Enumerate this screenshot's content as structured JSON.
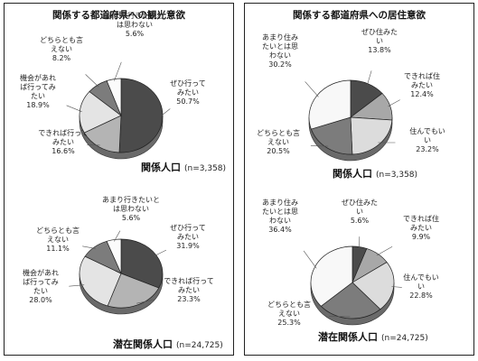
{
  "panels": [
    {
      "title": "関係する都道府県への観光意欲"
    },
    {
      "title": "関係する都道府県への居住意欲"
    }
  ],
  "chart_data": [
    {
      "type": "pie",
      "panel": 0,
      "group_name": "関係人口",
      "group_n": "(n=3,358)",
      "slices": [
        {
          "label": [
            "ぜひ行って",
            "みたい"
          ],
          "pct": "50.7%",
          "value": 50.7,
          "color": "#4b4b4b"
        },
        {
          "label": [
            "できれば行って",
            "みたい"
          ],
          "pct": "16.6%",
          "value": 16.6,
          "color": "#b4b4b4"
        },
        {
          "label": [
            "機会があれ",
            "ば行ってみ",
            "たい"
          ],
          "pct": "18.9%",
          "value": 18.9,
          "color": "#e4e4e4"
        },
        {
          "label": [
            "どちらとも言",
            "えない"
          ],
          "pct": "8.2%",
          "value": 8.2,
          "color": "#7c7c7c"
        },
        {
          "label": [
            "あまり行きたいと",
            "は思わない"
          ],
          "pct": "5.6%",
          "value": 5.6,
          "color": "#fbfbfb"
        }
      ]
    },
    {
      "type": "pie",
      "panel": 0,
      "group_name": "潜在関係人口",
      "group_n": "(n=24,725)",
      "slices": [
        {
          "label": [
            "ぜひ行って",
            "みたい"
          ],
          "pct": "31.9%",
          "value": 31.9,
          "color": "#4b4b4b"
        },
        {
          "label": [
            "できれば行って",
            "みたい"
          ],
          "pct": "23.3%",
          "value": 23.3,
          "color": "#b4b4b4"
        },
        {
          "label": [
            "機会があれ",
            "ば行ってみ",
            "たい"
          ],
          "pct": "28.0%",
          "value": 28.0,
          "color": "#e4e4e4"
        },
        {
          "label": [
            "どちらとも言",
            "えない"
          ],
          "pct": "11.1%",
          "value": 11.1,
          "color": "#7c7c7c"
        },
        {
          "label": [
            "あまり行きたいと",
            "は思わない"
          ],
          "pct": "5.6%",
          "value": 5.6,
          "color": "#fbfbfb"
        }
      ]
    },
    {
      "type": "pie",
      "panel": 1,
      "group_name": "関係人口",
      "group_n": "(n=3,358)",
      "slices": [
        {
          "label": [
            "ぜひ住みた",
            "い"
          ],
          "pct": "13.8%",
          "value": 13.8,
          "color": "#4b4b4b"
        },
        {
          "label": [
            "できれば住",
            "みたい"
          ],
          "pct": "12.4%",
          "value": 12.4,
          "color": "#a8a8a8"
        },
        {
          "label": [
            "住んでもい",
            "い"
          ],
          "pct": "23.2%",
          "value": 23.2,
          "color": "#dcdcdc"
        },
        {
          "label": [
            "どちらとも言",
            "えない"
          ],
          "pct": "20.5%",
          "value": 20.5,
          "color": "#7c7c7c"
        },
        {
          "label": [
            "あまり住み",
            "たいとは思",
            "わない"
          ],
          "pct": "30.2%",
          "value": 30.2,
          "color": "#f8f8f8"
        }
      ]
    },
    {
      "type": "pie",
      "panel": 1,
      "group_name": "潜在関係人口",
      "group_n": "(n=24,725)",
      "slices": [
        {
          "label": [
            "ぜひ住みた",
            "い"
          ],
          "pct": "5.6%",
          "value": 5.6,
          "color": "#4b4b4b"
        },
        {
          "label": [
            "できれば住",
            "みたい"
          ],
          "pct": "9.9%",
          "value": 9.9,
          "color": "#a8a8a8"
        },
        {
          "label": [
            "住んでもい",
            "い"
          ],
          "pct": "22.8%",
          "value": 22.8,
          "color": "#dcdcdc"
        },
        {
          "label": [
            "どちらとも言",
            "えない"
          ],
          "pct": "25.3%",
          "value": 25.3,
          "color": "#7c7c7c"
        },
        {
          "label": [
            "あまり住み",
            "たいとは思",
            "わない"
          ],
          "pct": "36.4%",
          "value": 36.4,
          "color": "#f8f8f8"
        }
      ]
    }
  ]
}
